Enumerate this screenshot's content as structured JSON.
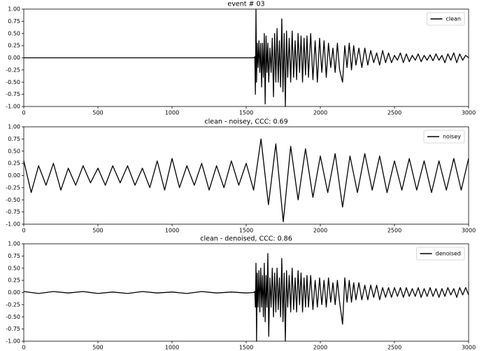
{
  "chart_data": [
    {
      "type": "line",
      "title": "event # 03",
      "legend": "upper right",
      "x": [
        0,
        1550,
        1558,
        1562,
        1566,
        1570,
        1574,
        1580,
        1586,
        1592,
        1598,
        1604,
        1610,
        1616,
        1622,
        1628,
        1634,
        1640,
        1646,
        1652,
        1660,
        1668,
        1676,
        1684,
        1692,
        1700,
        1708,
        1716,
        1724,
        1732,
        1740,
        1748,
        1756,
        1764,
        1772,
        1780,
        1790,
        1800,
        1810,
        1820,
        1830,
        1840,
        1850,
        1860,
        1870,
        1880,
        1890,
        1900,
        1910,
        1920,
        1935,
        1950,
        1965,
        1980,
        1995,
        2010,
        2025,
        2040,
        2055,
        2070,
        2085,
        2100,
        2115,
        2130,
        2150,
        2165,
        2180,
        2195,
        2210,
        2225,
        2240,
        2260,
        2280,
        2300,
        2320,
        2340,
        2360,
        2380,
        2400,
        2420,
        2440,
        2460,
        2480,
        2500,
        2520,
        2540,
        2560,
        2580,
        2600,
        2620,
        2640,
        2660,
        2680,
        2700,
        2720,
        2740,
        2760,
        2780,
        2800,
        2820,
        2840,
        2860,
        2880,
        2900,
        2920,
        2940,
        2960,
        2980,
        3000
      ],
      "series": [
        {
          "name": "clean",
          "color": "#000000",
          "values": [
            0,
            0,
            0.02,
            -0.75,
            1.0,
            -0.5,
            0.3,
            -0.2,
            0.35,
            -0.3,
            0.3,
            -0.6,
            0.3,
            -0.4,
            0.5,
            -0.95,
            0.45,
            -0.3,
            0.3,
            -0.5,
            0.2,
            -0.3,
            0.4,
            -0.8,
            0.5,
            -0.5,
            0.6,
            -0.5,
            0.35,
            -0.6,
            0.8,
            -0.7,
            0.5,
            -1.0,
            0.55,
            -0.4,
            0.4,
            -0.5,
            0.55,
            -0.4,
            0.35,
            -0.45,
            0.5,
            -0.3,
            0.45,
            -0.5,
            0.4,
            -0.35,
            0.45,
            -0.4,
            0.5,
            -0.45,
            0.35,
            -0.5,
            0.4,
            -0.3,
            0.35,
            -0.4,
            0.3,
            -0.2,
            0.2,
            -0.3,
            0.3,
            -0.25,
            -0.5,
            0.25,
            -0.2,
            0.3,
            -0.25,
            0.25,
            -0.15,
            0.2,
            -0.2,
            0.2,
            -0.15,
            0.15,
            -0.1,
            0.1,
            -0.15,
            0.15,
            -0.1,
            0.1,
            -0.1,
            0.05,
            -0.05,
            0.1,
            -0.1,
            0.08,
            -0.08,
            0.05,
            -0.05,
            0.08,
            -0.08,
            0.05,
            -0.05,
            0.06,
            -0.06,
            0.08,
            -0.05,
            0.05,
            -0.1,
            0.08,
            -0.05,
            0.1,
            -0.1,
            0.08,
            -0.05,
            0.05,
            0
          ]
        }
      ],
      "xlim": [
        0,
        3000
      ],
      "ylim": [
        -1,
        1
      ],
      "xticks": [
        0,
        500,
        1000,
        1500,
        2000,
        2500,
        3000
      ],
      "yticks": [
        {
          "value": -1,
          "label": "-1.00"
        },
        {
          "value": -0.75,
          "label": "-0.75"
        },
        {
          "value": -0.5,
          "label": "-0.50"
        },
        {
          "value": -0.25,
          "label": "-0.25"
        },
        {
          "value": 0,
          "label": "0.00"
        },
        {
          "value": 0.25,
          "label": "0.25"
        },
        {
          "value": 0.5,
          "label": "0.50"
        },
        {
          "value": 0.75,
          "label": "0.75"
        },
        {
          "value": 1,
          "label": "1.00"
        }
      ]
    },
    {
      "type": "line",
      "title": "clean - noisey, CCC: 0.69",
      "legend": "upper right",
      "x": [
        0,
        50,
        100,
        150,
        200,
        250,
        300,
        350,
        400,
        450,
        500,
        550,
        600,
        650,
        700,
        750,
        800,
        850,
        900,
        950,
        1000,
        1050,
        1100,
        1150,
        1200,
        1250,
        1300,
        1350,
        1400,
        1450,
        1500,
        1550,
        1600,
        1650,
        1700,
        1750,
        1800,
        1850,
        1900,
        1950,
        2000,
        2050,
        2100,
        2150,
        2200,
        2250,
        2300,
        2350,
        2400,
        2450,
        2500,
        2550,
        2600,
        2650,
        2700,
        2750,
        2800,
        2850,
        2900,
        2950,
        3000
      ],
      "series": [
        {
          "name": "noisey",
          "color": "#000000",
          "values": [
            0.3,
            -0.35,
            0.2,
            -0.2,
            0.25,
            -0.3,
            0.15,
            -0.2,
            0.2,
            -0.15,
            0.15,
            -0.2,
            0.2,
            -0.15,
            0.2,
            -0.2,
            0.15,
            -0.25,
            0.3,
            -0.3,
            0.35,
            -0.25,
            0.2,
            -0.2,
            0.25,
            -0.3,
            0.2,
            -0.25,
            0.3,
            -0.2,
            0.25,
            -0.3,
            0.75,
            -0.6,
            0.65,
            -0.95,
            0.6,
            -0.5,
            0.55,
            -0.45,
            0.4,
            -0.35,
            0.45,
            -0.65,
            0.4,
            -0.35,
            0.45,
            -0.3,
            0.4,
            -0.35,
            0.3,
            -0.3,
            0.35,
            -0.3,
            0.3,
            -0.35,
            0.3,
            -0.3,
            0.35,
            -0.3,
            0.35
          ]
        }
      ],
      "xlim": [
        0,
        3000
      ],
      "ylim": [
        -1,
        1
      ],
      "xticks": [
        0,
        500,
        1000,
        1500,
        2000,
        2500,
        3000
      ],
      "yticks": [
        {
          "value": -1,
          "label": "-1.00"
        },
        {
          "value": -0.75,
          "label": "-0.75"
        },
        {
          "value": -0.5,
          "label": "-0.50"
        },
        {
          "value": -0.25,
          "label": "-0.25"
        },
        {
          "value": 0,
          "label": "0.00"
        },
        {
          "value": 0.25,
          "label": "0.25"
        },
        {
          "value": 0.5,
          "label": "0.50"
        },
        {
          "value": 0.75,
          "label": "0.75"
        },
        {
          "value": 1,
          "label": "1.00"
        }
      ]
    },
    {
      "type": "line",
      "title": "clean - denoised, CCC: 0.86",
      "legend": "upper right",
      "x": [
        0,
        100,
        200,
        300,
        400,
        500,
        600,
        700,
        800,
        900,
        1000,
        1100,
        1200,
        1300,
        1400,
        1500,
        1550,
        1558,
        1562,
        1566,
        1570,
        1574,
        1580,
        1586,
        1592,
        1598,
        1604,
        1610,
        1616,
        1622,
        1628,
        1634,
        1640,
        1646,
        1652,
        1660,
        1668,
        1676,
        1684,
        1692,
        1700,
        1708,
        1716,
        1724,
        1732,
        1740,
        1748,
        1756,
        1764,
        1772,
        1780,
        1790,
        1800,
        1810,
        1820,
        1830,
        1840,
        1850,
        1860,
        1870,
        1880,
        1890,
        1900,
        1910,
        1920,
        1935,
        1950,
        1965,
        1980,
        1995,
        2010,
        2025,
        2040,
        2055,
        2070,
        2085,
        2100,
        2115,
        2130,
        2150,
        2165,
        2180,
        2195,
        2210,
        2225,
        2240,
        2260,
        2280,
        2300,
        2320,
        2340,
        2360,
        2380,
        2400,
        2420,
        2440,
        2460,
        2480,
        2500,
        2520,
        2540,
        2560,
        2580,
        2600,
        2620,
        2640,
        2660,
        2680,
        2700,
        2720,
        2740,
        2760,
        2780,
        2800,
        2820,
        2840,
        2860,
        2880,
        2900,
        2920,
        2940,
        2960,
        2980,
        3000
      ],
      "series": [
        {
          "name": "denoised",
          "color": "#000000",
          "values": [
            0.02,
            -0.02,
            0.02,
            -0.01,
            0.02,
            -0.02,
            0.01,
            -0.02,
            0.02,
            -0.01,
            0.01,
            -0.02,
            0.02,
            -0.01,
            0.01,
            -0.01,
            0,
            0.02,
            -0.3,
            0.6,
            -1.0,
            0.4,
            -0.3,
            0.45,
            -0.4,
            0.5,
            -0.3,
            0.35,
            -0.5,
            0.6,
            -0.6,
            0.35,
            -0.3,
            0.8,
            -0.9,
            0.3,
            -0.3,
            0.5,
            -0.5,
            0.4,
            -0.4,
            0.5,
            -0.35,
            0.3,
            -0.5,
            0.7,
            -0.6,
            0.4,
            -1.0,
            0.45,
            -0.3,
            0.35,
            -0.4,
            0.5,
            -0.35,
            0.3,
            -0.4,
            0.45,
            -0.25,
            0.4,
            -0.4,
            0.3,
            -0.3,
            0.35,
            -0.3,
            0.35,
            -0.35,
            0.25,
            -0.3,
            0.3,
            -0.25,
            0.25,
            -0.3,
            0.3,
            -0.2,
            0.2,
            -0.25,
            0.25,
            -0.2,
            -0.65,
            0.3,
            -0.2,
            0.25,
            -0.2,
            0.2,
            -0.15,
            0.2,
            -0.15,
            0.15,
            -0.15,
            0.15,
            -0.1,
            0.15,
            -0.15,
            0.1,
            -0.1,
            0.1,
            -0.1,
            0.1,
            -0.08,
            0.1,
            -0.1,
            0.1,
            -0.08,
            0.08,
            -0.08,
            0.1,
            -0.1,
            0.08,
            -0.08,
            0.1,
            -0.08,
            0.08,
            -0.1,
            0.08,
            -0.08,
            0.1,
            -0.05,
            0.08,
            -0.1,
            0.1,
            -0.05,
            0.1,
            -0.05
          ]
        }
      ],
      "xlim": [
        0,
        3000
      ],
      "ylim": [
        -1,
        1
      ],
      "xticks": [
        0,
        500,
        1000,
        1500,
        2000,
        2500,
        3000
      ],
      "yticks": [
        {
          "value": -1,
          "label": "-1.00"
        },
        {
          "value": -0.75,
          "label": "-0.75"
        },
        {
          "value": -0.5,
          "label": "-0.50"
        },
        {
          "value": -0.25,
          "label": "-0.25"
        },
        {
          "value": 0,
          "label": "0.00"
        },
        {
          "value": 0.25,
          "label": "0.25"
        },
        {
          "value": 0.5,
          "label": "0.50"
        },
        {
          "value": 0.75,
          "label": "0.75"
        },
        {
          "value": 1,
          "label": "1.00"
        }
      ]
    }
  ]
}
